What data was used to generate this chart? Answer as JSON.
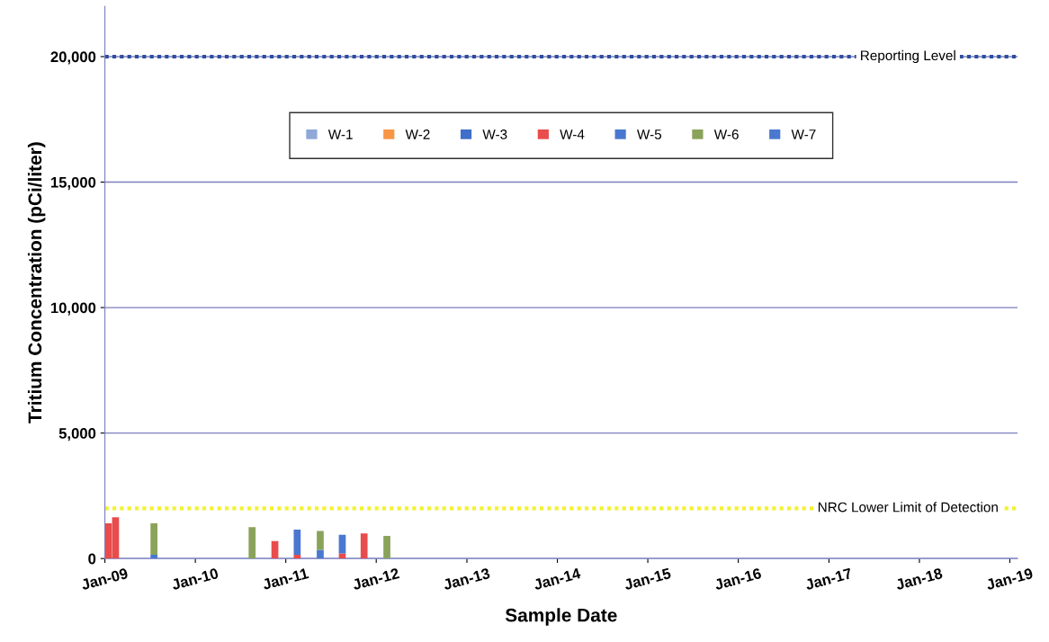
{
  "chart_data": {
    "type": "bar",
    "stacked": true,
    "xlabel": "Sample Date",
    "ylabel": "Tritium Concentration (pCi/liter)",
    "x": [
      "2009-01-15",
      "2009-02-13",
      "2009-07-18",
      "2010-08-18",
      "2010-11-18",
      "2011-02-16",
      "2011-05-20",
      "2011-08-17",
      "2011-11-13",
      "2012-02-13"
    ],
    "series": [
      {
        "name": "W-1",
        "color": "#8fa8d8",
        "values": [
          null,
          null,
          null,
          null,
          null,
          null,
          null,
          null,
          null,
          null
        ]
      },
      {
        "name": "W-2",
        "color": "#f79646",
        "values": [
          null,
          null,
          null,
          null,
          null,
          null,
          null,
          null,
          null,
          null
        ]
      },
      {
        "name": "W-3",
        "color": "#3f6fc8",
        "values": [
          null,
          null,
          null,
          null,
          null,
          null,
          null,
          null,
          null,
          null
        ]
      },
      {
        "name": "W-4",
        "color": "#e84c4c",
        "values": [
          1400,
          1650,
          null,
          null,
          700,
          150,
          null,
          200,
          1000,
          null
        ]
      },
      {
        "name": "W-5",
        "color": "#4a78d0",
        "values": [
          null,
          null,
          150,
          null,
          null,
          1000,
          350,
          750,
          null,
          null
        ]
      },
      {
        "name": "W-6",
        "color": "#8aa35a",
        "values": [
          null,
          null,
          1250,
          1250,
          null,
          null,
          750,
          null,
          null,
          900
        ]
      },
      {
        "name": "W-7",
        "color": "#4a78d0",
        "values": [
          null,
          null,
          null,
          null,
          null,
          null,
          null,
          null,
          null,
          null
        ]
      }
    ],
    "xlim": [
      "2009-01-01",
      "2019-02-01"
    ],
    "xticks": [
      {
        "value": "2009-01-01",
        "label": "Jan-09"
      },
      {
        "value": "2010-01-01",
        "label": "Jan-10"
      },
      {
        "value": "2011-01-01",
        "label": "Jan-11"
      },
      {
        "value": "2012-01-01",
        "label": "Jan-12"
      },
      {
        "value": "2013-01-01",
        "label": "Jan-13"
      },
      {
        "value": "2014-01-01",
        "label": "Jan-14"
      },
      {
        "value": "2015-01-01",
        "label": "Jan-15"
      },
      {
        "value": "2016-01-01",
        "label": "Jan-16"
      },
      {
        "value": "2017-01-01",
        "label": "Jan-17"
      },
      {
        "value": "2018-01-01",
        "label": "Jan-18"
      },
      {
        "value": "2019-01-01",
        "label": "Jan-19"
      }
    ],
    "ylim": [
      0,
      22000
    ],
    "yticks": [
      {
        "value": 0,
        "label": "0"
      },
      {
        "value": 5000,
        "label": "5,000"
      },
      {
        "value": 10000,
        "label": "10,000"
      },
      {
        "value": 15000,
        "label": "15,000"
      },
      {
        "value": 20000,
        "label": "20,000"
      }
    ],
    "grid": "y",
    "legend": "top",
    "ref_lines": [
      {
        "axis": "y",
        "value": 20000,
        "label": "Reporting Level",
        "color": "#2e4d9e",
        "line_style": "dotted"
      },
      {
        "axis": "y",
        "value": 2000,
        "label": "NRC Lower Limit of Detection",
        "color": "#f2f230",
        "line_style": "dotted"
      }
    ]
  }
}
